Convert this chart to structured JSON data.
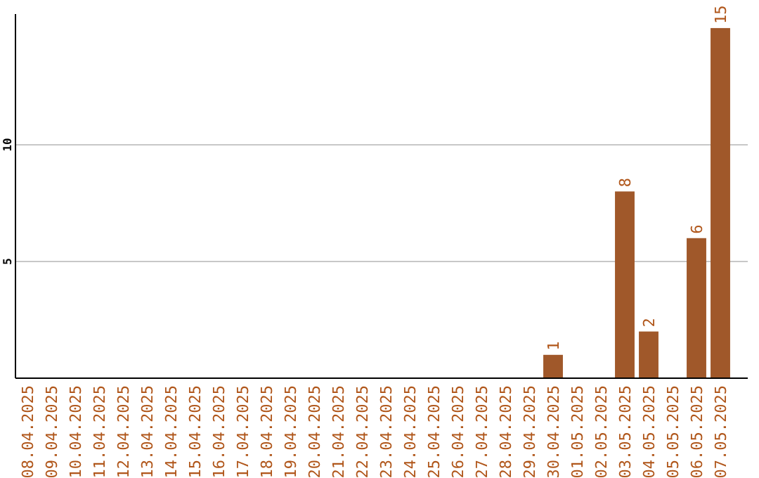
{
  "chart_data": {
    "type": "bar",
    "categories": [
      "08.04.2025",
      "09.04.2025",
      "10.04.2025",
      "11.04.2025",
      "12.04.2025",
      "13.04.2025",
      "14.04.2025",
      "15.04.2025",
      "16.04.2025",
      "17.04.2025",
      "18.04.2025",
      "19.04.2025",
      "20.04.2025",
      "21.04.2025",
      "22.04.2025",
      "23.04.2025",
      "24.04.2025",
      "25.04.2025",
      "26.04.2025",
      "27.04.2025",
      "28.04.2025",
      "29.04.2025",
      "30.04.2025",
      "01.05.2025",
      "02.05.2025",
      "03.05.2025",
      "04.05.2025",
      "05.05.2025",
      "06.05.2025",
      "07.05.2025"
    ],
    "values": [
      0,
      0,
      0,
      0,
      0,
      0,
      0,
      0,
      0,
      0,
      0,
      0,
      0,
      0,
      0,
      0,
      0,
      0,
      0,
      0,
      0,
      0,
      1,
      0,
      0,
      8,
      2,
      0,
      6,
      15
    ],
    "value_labels": [
      null,
      null,
      null,
      null,
      null,
      null,
      null,
      null,
      null,
      null,
      null,
      null,
      null,
      null,
      null,
      null,
      null,
      null,
      null,
      null,
      null,
      null,
      "1",
      null,
      null,
      "8",
      "2",
      null,
      "6",
      "15"
    ],
    "color": "#a0582a",
    "ylim": [
      0,
      15.6
    ],
    "yticks": [
      5,
      10
    ],
    "grid": "y"
  }
}
